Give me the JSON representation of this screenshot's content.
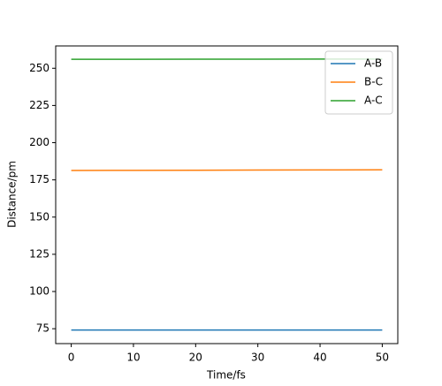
{
  "chart_data": {
    "type": "line",
    "x": [
      0,
      10,
      20,
      30,
      40,
      50
    ],
    "series": [
      {
        "name": "A-B",
        "color": "#1f77b4",
        "values": [
          74.1,
          74.1,
          74.1,
          74.1,
          74.1,
          74.1
        ]
      },
      {
        "name": "B-C",
        "color": "#ff7f0e",
        "values": [
          181.3,
          181.4,
          181.5,
          181.6,
          181.7,
          181.8
        ]
      },
      {
        "name": "A-C",
        "color": "#2ca02c",
        "values": [
          256,
          256,
          256.1,
          256.1,
          256.2,
          256.2
        ]
      }
    ],
    "x_label": "Time/fs",
    "y_label": "Distance/pm",
    "xlim": [
      -2.5,
      52.5
    ],
    "xticks": [
      0,
      10,
      20,
      30,
      40,
      50
    ],
    "ylim": [
      65,
      265
    ],
    "yticks": [
      75,
      100,
      125,
      150,
      175,
      200,
      225,
      250
    ],
    "legend": "upper right",
    "grid": false
  }
}
